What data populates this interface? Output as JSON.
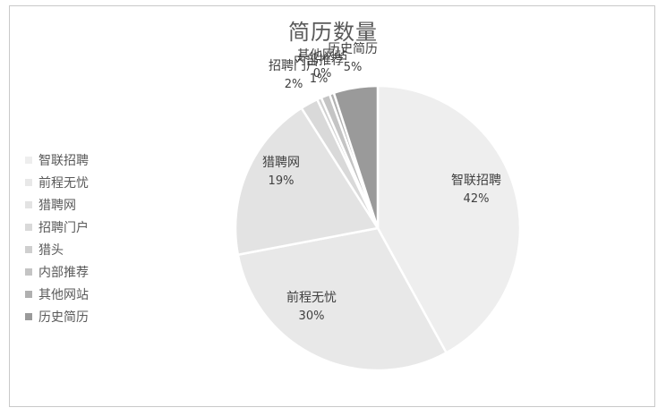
{
  "chart_data": {
    "type": "pie",
    "title": "简历数量",
    "legend_position": "left",
    "slices": [
      {
        "label": "智联招聘",
        "value": 42,
        "pct_label": "42%",
        "color": "#eeeeee"
      },
      {
        "label": "前程无忧",
        "value": 30,
        "pct_label": "30%",
        "color": "#e8e8e8"
      },
      {
        "label": "猎聘网",
        "value": 19,
        "pct_label": "19%",
        "color": "#e3e3e3"
      },
      {
        "label": "招聘门户",
        "value": 2,
        "pct_label": "2%",
        "color": "#d9d9d9"
      },
      {
        "label": "猎头",
        "value": 0.5,
        "pct_label": "",
        "color": "#cfcfcf"
      },
      {
        "label": "内部推荐",
        "value": 1,
        "pct_label": "1%",
        "color": "#c4c4c4"
      },
      {
        "label": "其他网站",
        "value": 0.5,
        "pct_label": "0%",
        "color": "#b0b0b0"
      },
      {
        "label": "历史简历",
        "value": 5,
        "pct_label": "5%",
        "color": "#9a9a9a"
      }
    ]
  }
}
